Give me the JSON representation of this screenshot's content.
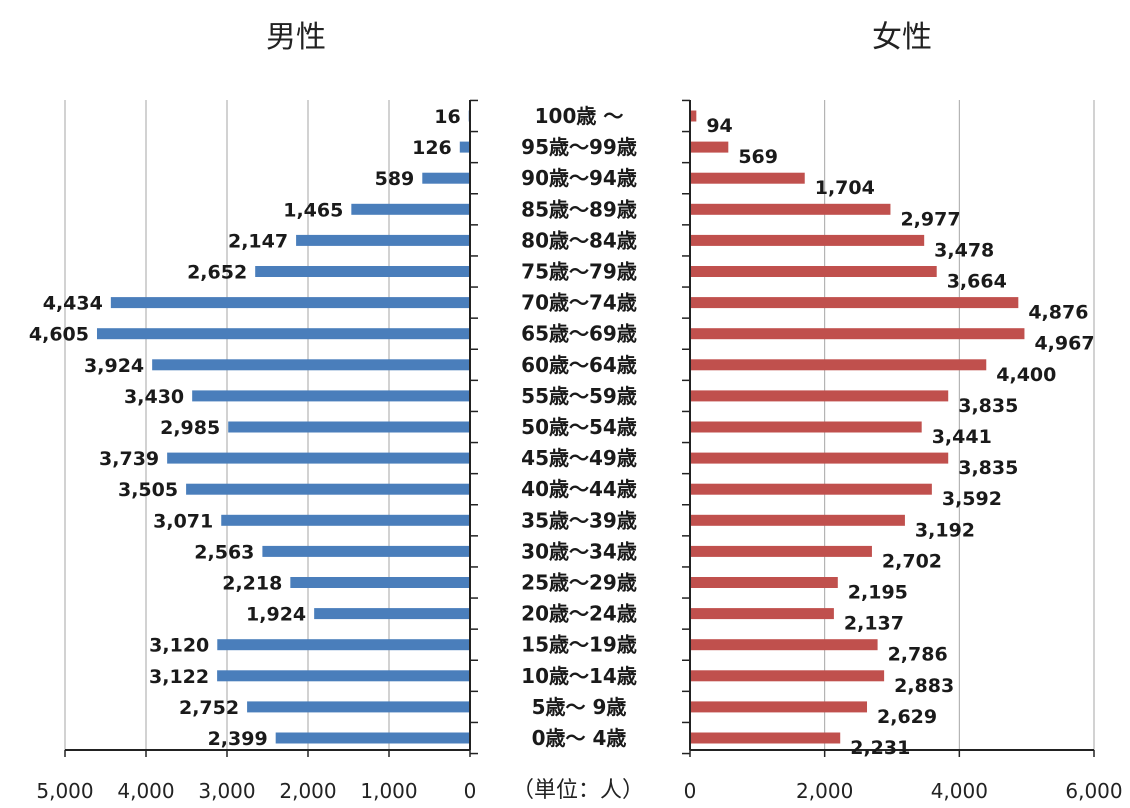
{
  "chart_data": {
    "type": "bar",
    "categories": [
      "100歳 〜",
      "95歳〜99歳",
      "90歳〜94歳",
      "85歳〜89歳",
      "80歳〜84歳",
      "75歳〜79歳",
      "70歳〜74歳",
      "65歳〜69歳",
      "60歳〜64歳",
      "55歳〜59歳",
      "50歳〜54歳",
      "45歳〜49歳",
      "40歳〜44歳",
      "35歳〜39歳",
      "30歳〜34歳",
      "25歳〜29歳",
      "20歳〜24歳",
      "15歳〜19歳",
      "10歳〜14歳",
      "5歳〜 9歳",
      "0歳〜 4歳"
    ],
    "series": [
      {
        "name": "男性",
        "color": "#4a7ebb",
        "values": [
          16,
          126,
          589,
          1465,
          2147,
          2652,
          4434,
          4605,
          3924,
          3430,
          2985,
          3739,
          3505,
          3071,
          2563,
          2218,
          1924,
          3120,
          3122,
          2752,
          2399
        ],
        "labels": [
          "16",
          "126",
          "589",
          "1,465",
          "2,147",
          "2,652",
          "4,434",
          "4,605",
          "3,924",
          "3,430",
          "2,985",
          "3,739",
          "3,505",
          "3,071",
          "2,563",
          "2,218",
          "1,924",
          "3,120",
          "3,122",
          "2,752",
          "2,399"
        ]
      },
      {
        "name": "女性",
        "color": "#c0504d",
        "values": [
          94,
          569,
          1704,
          2977,
          3478,
          3664,
          4876,
          4967,
          4400,
          3835,
          3441,
          3835,
          3592,
          3192,
          2702,
          2195,
          2137,
          2786,
          2883,
          2629,
          2231
        ],
        "labels": [
          "94",
          "569",
          "1,704",
          "2,977",
          "3,478",
          "3,664",
          "4,876",
          "4,967",
          "4,400",
          "3,835",
          "3,441",
          "3,835",
          "3,592",
          "3,192",
          "2,702",
          "2,195",
          "2,137",
          "2,786",
          "2,883",
          "2,629",
          "2,231"
        ]
      }
    ],
    "left_axis": {
      "range": [
        0,
        5000
      ],
      "ticks": [
        5000,
        4000,
        3000,
        2000,
        1000,
        0
      ],
      "tick_labels": [
        "5,000",
        "4,000",
        "3,000",
        "2,000",
        "1,000",
        "0"
      ]
    },
    "right_axis": {
      "range": [
        0,
        6000
      ],
      "ticks": [
        0,
        2000,
        4000,
        6000
      ],
      "tick_labels": [
        "0",
        "2,000",
        "4,000",
        "6,000"
      ]
    },
    "unit_label": "（単位：人）",
    "grid": true,
    "gridline_color": "#a6a6a6",
    "axis_color": "#222222"
  }
}
